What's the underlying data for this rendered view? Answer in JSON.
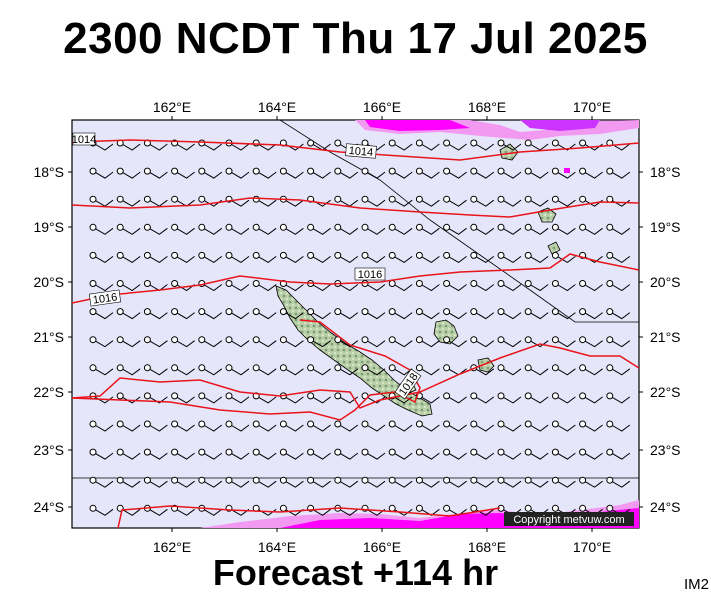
{
  "title": "2300 NCDT Thu 17 Jul 2025",
  "footer": "Forecast +114 hr",
  "image_tag": "IM2",
  "copyright": "Copyright metvuw.com",
  "axes": {
    "lon_labels": [
      "162°E",
      "164°E",
      "166°E",
      "168°E",
      "170°E"
    ],
    "lat_labels": [
      "18°S",
      "19°S",
      "20°S",
      "21°S",
      "22°S",
      "23°S",
      "24°S"
    ]
  },
  "isobars": [
    {
      "label": "1014"
    },
    {
      "label": "1014"
    },
    {
      "label": "1016"
    },
    {
      "label": "1016"
    },
    {
      "label": "1018"
    }
  ],
  "colors": {
    "ocean": "#e6e6fb",
    "isobar": "#e8141a",
    "rain_heavy": "#ff00ff",
    "rain_light": "#f0a0f0",
    "land": "#a8c8a0"
  },
  "wind": {
    "direction": "south-easterly",
    "barb_rows": 14,
    "barb_cols": 20
  }
}
